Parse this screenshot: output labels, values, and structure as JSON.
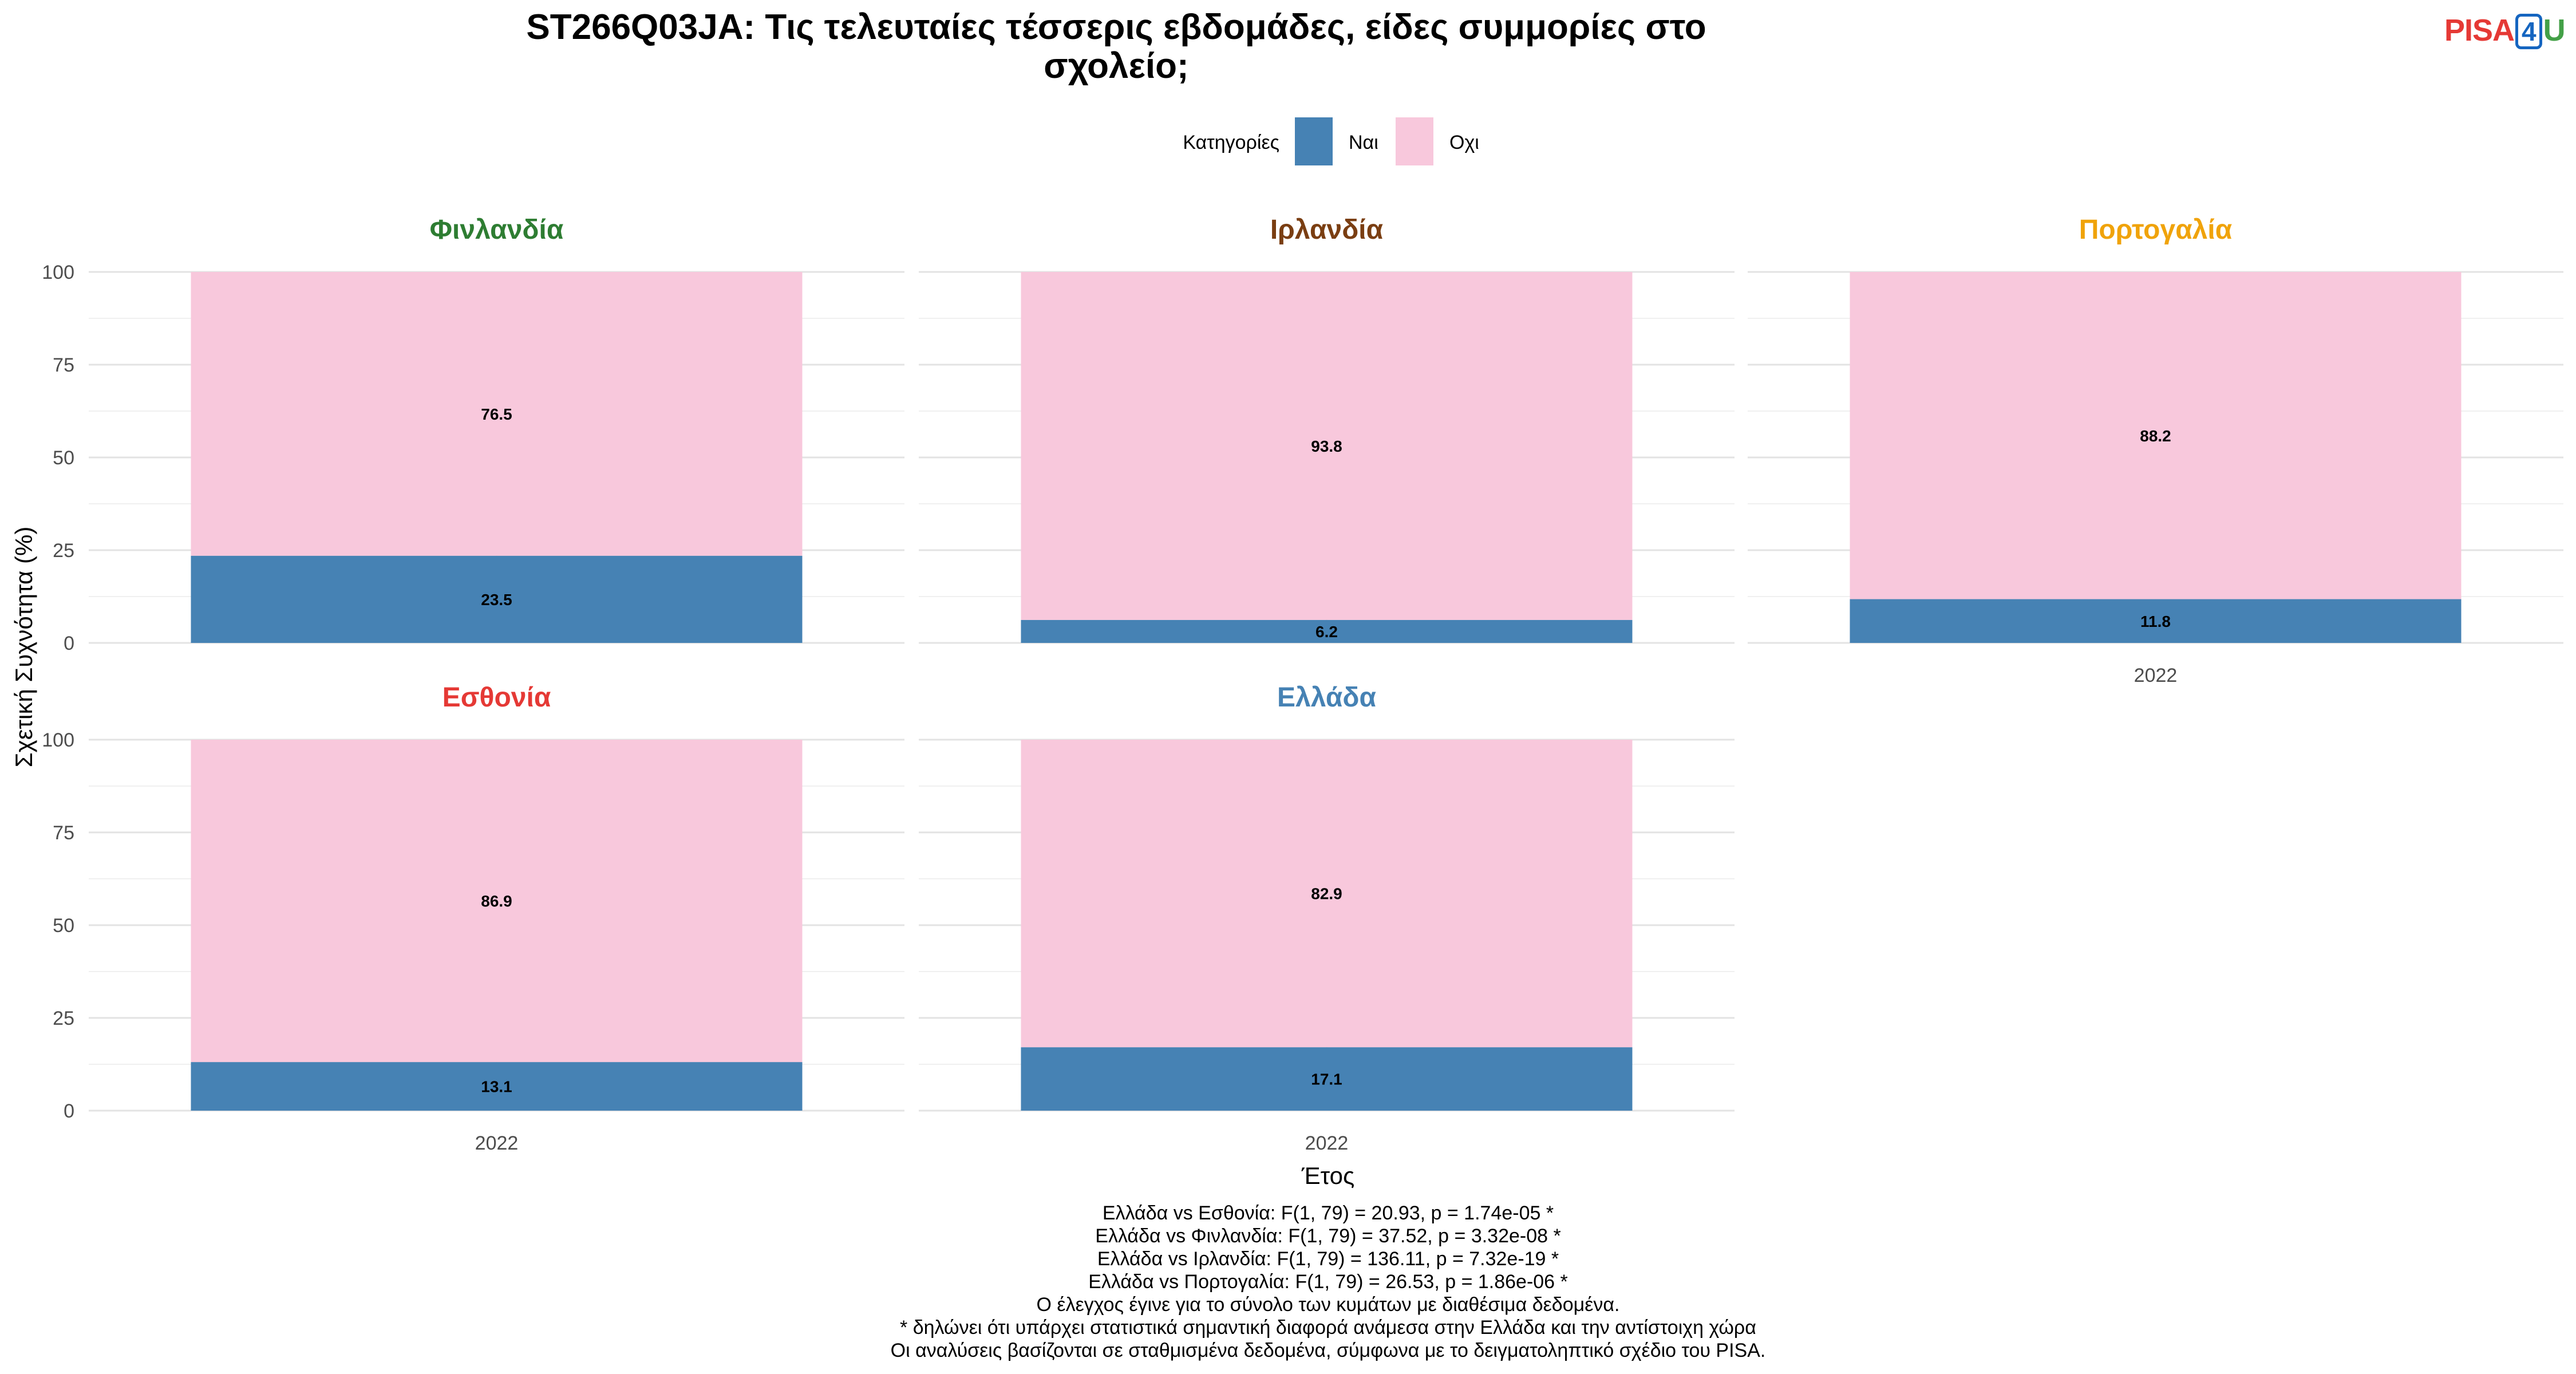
{
  "chart_data": {
    "type": "bar",
    "stacked": true,
    "title": "ST266Q03JA: Τις τελευταίες τέσσερις εβδομάδες, είδες συμμορίες στο σχολείο;",
    "title_lines": [
      "ST266Q03JA: Τις τελευταίες τέσσερις εβδομάδες, είδες συμμορίες στο",
      "σχολείο;"
    ],
    "xlabel": "Έτος",
    "ylabel": "Σχετική Συχνότητα (%)",
    "ylim": [
      0,
      100
    ],
    "yticks": [
      0,
      25,
      50,
      75,
      100
    ],
    "grid": true,
    "legend": {
      "title": "Κατηγορίες",
      "position": "top",
      "entries": [
        {
          "label": "Ναι",
          "color": "#4682b4"
        },
        {
          "label": "Οχι",
          "color": "#f8c8dc"
        }
      ]
    },
    "panels": [
      {
        "name": "Φινλανδία",
        "color": "#2e7d32",
        "year": "2022",
        "values": {
          "Ναι": 23.5,
          "Οχι": 76.5
        }
      },
      {
        "name": "Ιρλανδία",
        "color": "#7a3e12",
        "year": "2022",
        "values": {
          "Ναι": 6.2,
          "Οχι": 93.8
        }
      },
      {
        "name": "Πορτογαλία",
        "color": "#f0a30a",
        "year": "2022",
        "values": {
          "Ναι": 11.8,
          "Οχι": 88.2
        }
      },
      {
        "name": "Εσθονία",
        "color": "#e53935",
        "year": "2022",
        "values": {
          "Ναι": 13.1,
          "Οχι": 86.9
        }
      },
      {
        "name": "Ελλάδα",
        "color": "#4682b4",
        "year": "2022",
        "values": {
          "Ναι": 17.1,
          "Οχι": 82.9
        }
      }
    ],
    "notes": [
      "Ελλάδα vs Εσθονία: F(1, 79) = 20.93, p = 1.74e-05 *",
      "Ελλάδα vs Φινλανδία: F(1, 79) = 37.52, p = 3.32e-08 *",
      "Ελλάδα vs Ιρλανδία: F(1, 79) = 136.11, p = 7.32e-19 *",
      "Ελλάδα vs Πορτογαλία: F(1, 79) = 26.53, p = 1.86e-06 *",
      "Ο έλεγχος έγινε για το σύνολο των κυμάτων με διαθέσιμα δεδομένα.",
      "* δηλώνει ότι υπάρχει στατιστικά σημαντική διαφορά ανάμεσα στην Ελλάδα και την αντίστοιχη χώρα",
      "Οι αναλύσεις βασίζονται σε σταθμισμένα δεδομένα, σύμφωνα με το δειγματοληπτικό σχέδιο του PISA."
    ]
  },
  "logo": {
    "part1": "PISA",
    "part2": "4",
    "part3": "U"
  }
}
